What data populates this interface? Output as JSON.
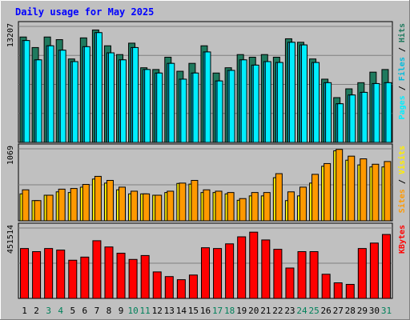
{
  "chart_data": {
    "title": "Daily usage for May 2025",
    "days": [
      "1",
      "2",
      "3",
      "4",
      "5",
      "6",
      "7",
      "8",
      "9",
      "10",
      "11",
      "12",
      "13",
      "14",
      "15",
      "16",
      "17",
      "18",
      "19",
      "20",
      "21",
      "22",
      "23",
      "24",
      "25",
      "26",
      "27",
      "28",
      "29",
      "30",
      "31"
    ],
    "weekend_days": [
      "3",
      "4",
      "10",
      "11",
      "17",
      "18",
      "24",
      "25",
      "31"
    ],
    "panels": [
      {
        "type": "bar",
        "ymax_label": "13207",
        "ymax": 13207,
        "legend": [
          "Pages",
          "/",
          "Files",
          "/",
          "Hits"
        ],
        "series": [
          {
            "name": "Hits",
            "color": "#1f7a5e",
            "values": [
              12000,
              10800,
              12000,
              11700,
              9500,
              11900,
              12800,
              11000,
              10000,
              11300,
              8500,
              8300,
              9700,
              8100,
              9000,
              11000,
              7900,
              8500,
              10000,
              9700,
              10000,
              9700,
              11800,
              11400,
              9500,
              7200,
              5100,
              6100,
              6800,
              8000,
              8300
            ]
          },
          {
            "name": "Files",
            "color": "#00bbdd",
            "values": [
              11600,
              9400,
              11000,
              10500,
              9200,
              10900,
              12500,
              10200,
              9400,
              10800,
              8300,
              7900,
              9000,
              7200,
              7900,
              10300,
              7000,
              8200,
              9400,
              8800,
              9200,
              9100,
              11400,
              11100,
              9100,
              6800,
              4400,
              5400,
              5700,
              6700,
              6800
            ]
          },
          {
            "name": "Pages",
            "color": "#00eeff",
            "values": [
              11600,
              9400,
              11000,
              10500,
              9200,
              10900,
              12500,
              10200,
              9400,
              10800,
              8300,
              7900,
              9000,
              7200,
              7900,
              10300,
              7000,
              8200,
              9400,
              8800,
              9200,
              9100,
              11400,
              11100,
              9100,
              6800,
              4400,
              5400,
              5700,
              6700,
              6800
            ]
          }
        ]
      },
      {
        "type": "bar",
        "ymax_label": "1069",
        "ymax": 1069,
        "legend": [
          "Sites",
          "/",
          "Visits"
        ],
        "series": [
          {
            "name": "Visits",
            "color": "#ffee00",
            "values": [
              400,
              300,
              380,
              430,
              420,
              500,
              620,
              560,
              460,
              400,
              400,
              380,
              420,
              555,
              545,
              420,
              420,
              400,
              305,
              370,
              370,
              640,
              300,
              370,
              560,
              810,
              1040,
              900,
              830,
              800,
              800
            ]
          },
          {
            "name": "Sites",
            "color": "#ff9900",
            "values": [
              460,
              300,
              380,
              470,
              480,
              540,
              660,
              600,
              500,
              440,
              400,
              380,
              440,
              560,
              600,
              460,
              440,
              420,
              330,
              420,
              420,
              700,
              430,
              500,
              690,
              850,
              1060,
              960,
              920,
              840,
              880
            ]
          }
        ]
      },
      {
        "type": "bar",
        "ymax_label": "451514",
        "ymax": 451514,
        "legend": [
          "KBytes"
        ],
        "series": [
          {
            "name": "KBytes",
            "color": "#ff0000",
            "values": [
              320000,
              300000,
              320000,
              310000,
              245000,
              265000,
              370000,
              330000,
              290000,
              250000,
              275000,
              170000,
              140000,
              120000,
              150000,
              325000,
              320000,
              350000,
              395000,
              425000,
              375000,
              315000,
              195000,
              300000,
              300000,
              155000,
              100000,
              90000,
              320000,
              355000,
              410000
            ]
          }
        ]
      }
    ]
  }
}
